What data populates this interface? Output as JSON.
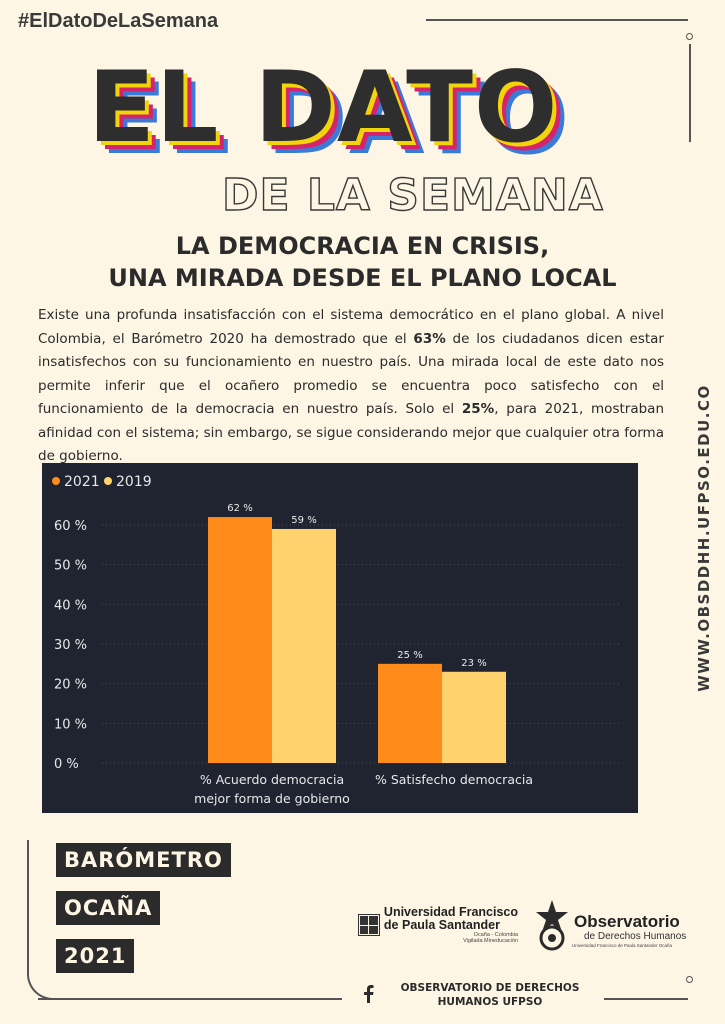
{
  "hashtag": "#ElDatoDeLaSemana",
  "side_url": "WWW.OBSDDHH.UFPSO.EDU.CO",
  "title": {
    "main": "EL DATO",
    "sub": "DE LA SEMANA"
  },
  "headline": {
    "line1": "LA DEMOCRACIA EN CRISIS,",
    "line2": "UNA MIRADA DESDE EL PLANO LOCAL"
  },
  "body": {
    "p1": "Existe una profunda insatisfacción con el sistema democrático en el plano global. A nivel Colombia, el Barómetro 2020 ha demostrado que el ",
    "b1": "63%",
    "p2": " de los ciudadanos dicen estar insatisfechos con su funcionamiento en nuestro país. Una mirada local de este dato nos permite inferir que el ocañero promedio se encuentra poco satisfecho con el funcionamiento de la democracia en nuestro país. Solo el ",
    "b2": "25%",
    "p3": ", para 2021, mostraban afinidad con el sistema; sin embargo, se sigue considerando mejor que cualquier otra forma de gobierno."
  },
  "chart_data": {
    "type": "bar",
    "categories": [
      [
        "% Acuerdo democracia",
        "mejor forma de gobierno"
      ],
      [
        "% Satisfecho democracia"
      ]
    ],
    "series": [
      {
        "name": "2021",
        "values": [
          62,
          25
        ],
        "labels": [
          "62 %",
          "25 %"
        ],
        "color": "#ff8c1a"
      },
      {
        "name": "2019",
        "values": [
          59,
          23
        ],
        "labels": [
          "59 %",
          "23 %"
        ],
        "color": "#ffd26e"
      }
    ],
    "yticks": [
      "0 %",
      "10 %",
      "20 %",
      "30 %",
      "40 %",
      "50 %",
      "60 %"
    ],
    "ylim": [
      0,
      60
    ],
    "legend_position": "top-left",
    "grid": true,
    "background": "#1f2430"
  },
  "tags": [
    "BARÓMETRO",
    "OCAÑA",
    "2021"
  ],
  "logos": {
    "ufps_line1": "Universidad Francisco",
    "ufps_line2": "de Paula Santander",
    "ufps_line3": "Ocaña - Colombia",
    "ufps_line4": "Vigilada Mineducación",
    "obs_line1": "Observatorio",
    "obs_line2": "de Derechos Humanos",
    "obs_line3": "Universidad Francisco de Paula Santander Ocaña"
  },
  "footer": {
    "line1": "OBSERVATORIO DE DERECHOS",
    "line2": "HUMANOS UFPSO"
  },
  "icons": {
    "facebook": "facebook-icon"
  }
}
